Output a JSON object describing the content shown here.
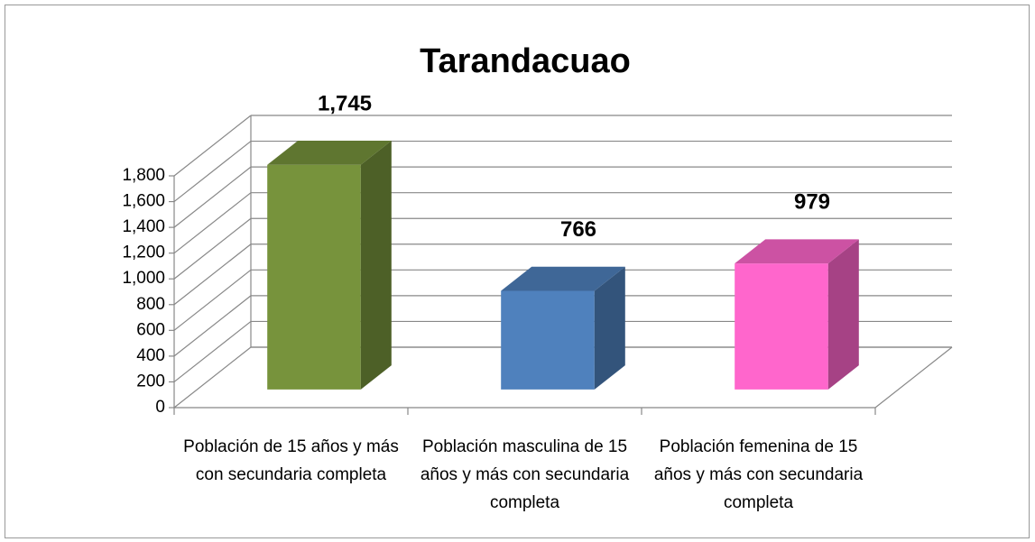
{
  "chart_data": {
    "type": "bar3d",
    "title": "Tarandacuao",
    "categories": [
      "Población de 15 años y más con secundaria completa",
      "Población masculina de 15 años y más con secundaria completa",
      "Población femenina de 15 años y más con secundaria completa"
    ],
    "values": [
      1745,
      766,
      979
    ],
    "value_labels": [
      "1,745",
      "766",
      "979"
    ],
    "colors": [
      "#77933c",
      "#4f81bd",
      "#ff66cc"
    ],
    "ylim": [
      0,
      1800
    ],
    "yticks": [
      0,
      200,
      400,
      600,
      800,
      {
        "value": 1000,
        "label": "1,000"
      },
      {
        "value": 1200,
        "label": "1,200"
      },
      {
        "value": 1400,
        "label": "1,400"
      },
      {
        "value": 1600,
        "label": "1,600"
      },
      {
        "value": 1800,
        "label": "1,800"
      }
    ],
    "grid": true
  }
}
